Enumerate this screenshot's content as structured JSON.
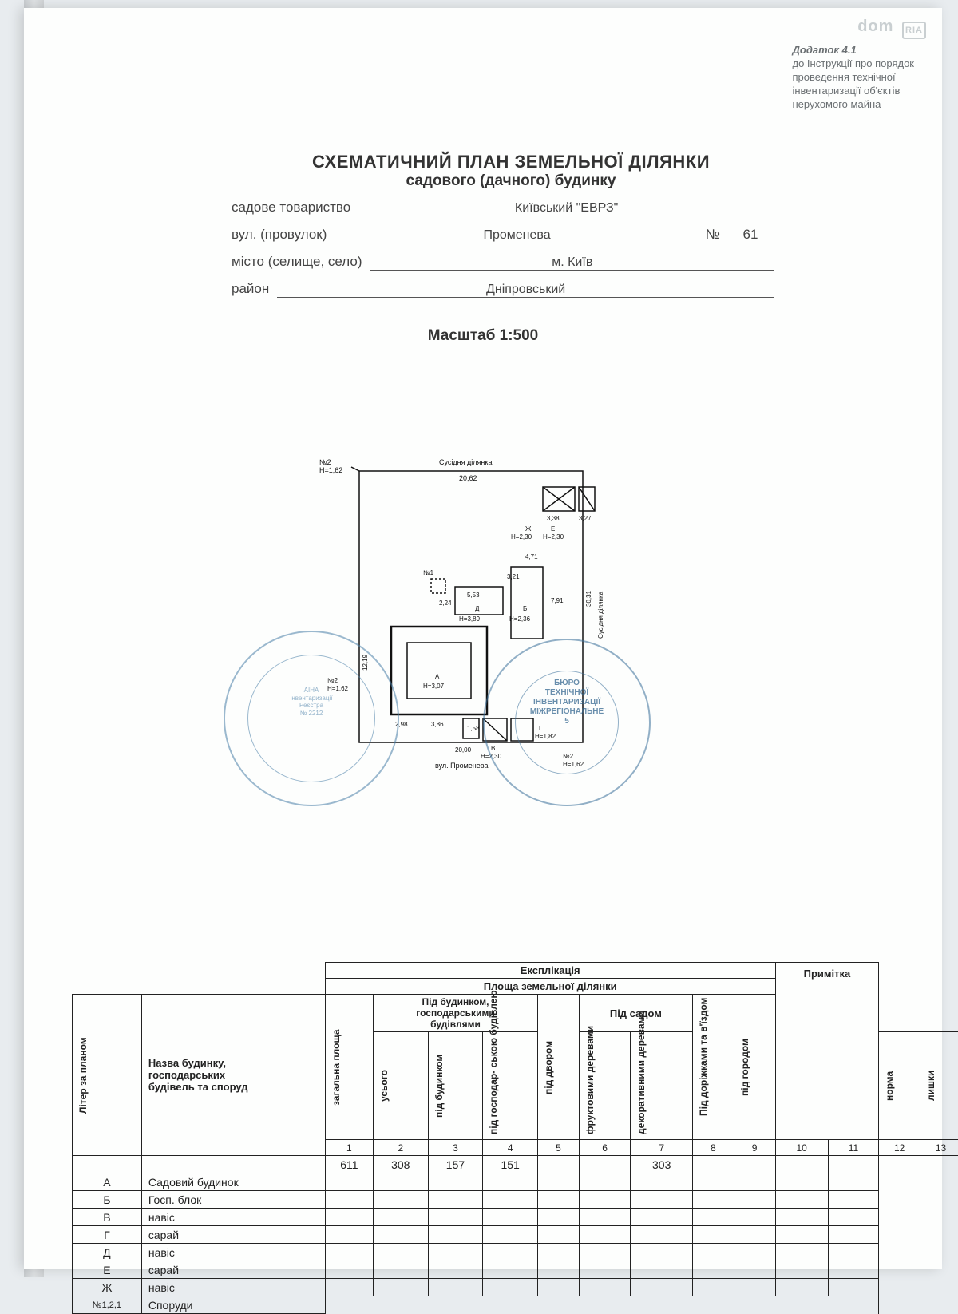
{
  "watermark": {
    "text": "dom",
    "badge": "RIA"
  },
  "appendix": {
    "line1": "Додаток 4.1",
    "line2": "до Інструкції про порядок",
    "line3": "проведення технічної",
    "line4": "інвентаризації об'єктів",
    "line5": "нерухомого майна"
  },
  "header": {
    "title1": "СХЕМАТИЧНИЙ ПЛАН ЗЕМЕЛЬНОЇ ДІЛЯНКИ",
    "title2": "садового (дачного) будинку"
  },
  "form": {
    "assoc_label": "садове товариство",
    "assoc_value": "Київський \"ЕВРЗ\"",
    "street_label": "вул. (провулок)",
    "street_value": "Променева",
    "num_label": "№",
    "num_value": "61",
    "city_label": "місто (селище, село)",
    "city_value": "м. Київ",
    "district_label": "район",
    "district_value": "Дніпровський"
  },
  "scale": "Масштаб 1:500",
  "diagram": {
    "neighbor": "Сусідня ділянка",
    "neighbor_side": "Сусідня ділянка",
    "street": "вул. Променева",
    "dims": {
      "top": "20,62",
      "right": "30,31",
      "bottom": "20,00",
      "n2h": "№2\nН=1,62",
      "seg338": "3,38",
      "seg327": "3,27",
      "zh": "Ж",
      "zhh": "Н=2,30",
      "e": "Е",
      "eh": "Н=2,30",
      "seg471": "4,71",
      "n1": "№1",
      "seg321": "3,21",
      "seg553": "5,53",
      "seg224": "2,24",
      "d": "Д",
      "dh": "Н=3,89",
      "b": "Б",
      "bh": "Н=2,36",
      "seg791": "7,91",
      "seg1219": "12,19",
      "a": "А",
      "ah": "Н=3,07",
      "n2left": "№2",
      "n2lefth": "Н=1,62",
      "seg298": "2,98",
      "seg386": "3,86",
      "seg158": "1,58",
      "v": "В",
      "vh": "Н=2,30",
      "g": "Г",
      "gh": "Н=1,82",
      "ghh": "Н=1,62",
      "n2r": "№2"
    }
  },
  "stamps": {
    "s1": {
      "l1": "АІНА",
      "l2": "інвентаризації",
      "l3": "Реєстра",
      "l4": "№ 2212"
    },
    "s2": {
      "l1": "БЮРО",
      "l2": "ТЕХНІЧНОЇ",
      "l3": "ІНВЕНТАРИЗАЦІЇ",
      "l4": "МІЖРЕГІОНАЛЬНЕ",
      "l5": "5"
    }
  },
  "table": {
    "title": "Експлікація",
    "area_title": "Площа земельної ділянки",
    "note": "Примітка",
    "liter": "Літер за планом",
    "name": "Назва будинку,\nгосподарських\nбудівель та споруд",
    "under_building": "Під будинком,\nгосподарськими\nбудівлями",
    "under_garden": "Під садом",
    "cols": {
      "total": "загальна\nплоща",
      "all": "усього",
      "under_house": "під\nбудинком",
      "under_farm": "під господар-\nською будівлею",
      "under_yard": "під\nдвором",
      "fruit": "фруктовими\nдеревами",
      "decor": "декоративними\nдеревами",
      "paths": "Під доріжками\nта в'їздом",
      "veg": "під\nгородом",
      "norm": "норма",
      "excess": "лишки"
    },
    "numbers": [
      "1",
      "2",
      "3",
      "4",
      "5",
      "6",
      "7",
      "8",
      "9",
      "10",
      "11",
      "12",
      "13"
    ],
    "rows": [
      {
        "l": "",
        "n": "",
        "c": [
          "611",
          "308",
          "157",
          "151",
          "",
          "",
          "303",
          "",
          "",
          "",
          ""
        ]
      },
      {
        "l": "А",
        "n": "Садовий будинок",
        "c": [
          "",
          "",
          "",
          "",
          "",
          "",
          "",
          "",
          "",
          "",
          ""
        ]
      },
      {
        "l": "Б",
        "n": "Госп. блок",
        "c": [
          "",
          "",
          "",
          "",
          "",
          "",
          "",
          "",
          "",
          "",
          ""
        ]
      },
      {
        "l": "В",
        "n": "навіс",
        "c": [
          "",
          "",
          "",
          "",
          "",
          "",
          "",
          "",
          "",
          "",
          ""
        ]
      },
      {
        "l": "Г",
        "n": "сарай",
        "c": [
          "",
          "",
          "",
          "",
          "",
          "",
          "",
          "",
          "",
          "",
          ""
        ]
      },
      {
        "l": "Д",
        "n": "навіс",
        "c": [
          "",
          "",
          "",
          "",
          "",
          "",
          "",
          "",
          "",
          "",
          ""
        ]
      },
      {
        "l": "Е",
        "n": "сарай",
        "c": [
          "",
          "",
          "",
          "",
          "",
          "",
          "",
          "",
          "",
          "",
          ""
        ]
      },
      {
        "l": "Ж",
        "n": "навіс",
        "c": [
          "",
          "",
          "",
          "",
          "",
          "",
          "",
          "",
          "",
          "",
          ""
        ]
      }
    ],
    "last": {
      "l": "№1,2,1",
      "n": "Споруди"
    }
  }
}
